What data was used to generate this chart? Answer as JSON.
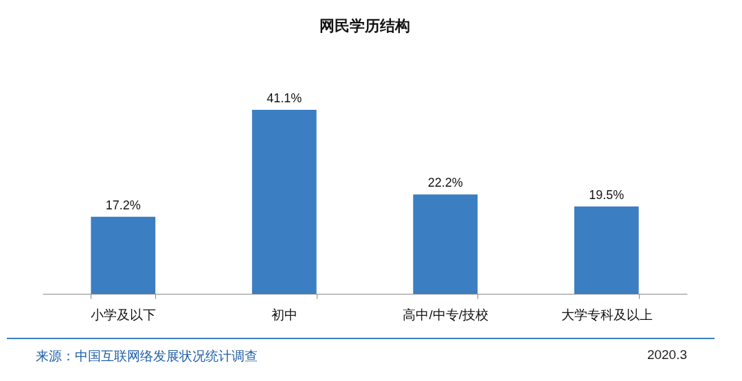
{
  "chart_data": {
    "type": "bar",
    "title": "网民学历结构",
    "categories": [
      "小学及以下",
      "初中",
      "高中/中专/技校",
      "大学专科及以上"
    ],
    "values": [
      17.2,
      41.1,
      22.2,
      19.5
    ],
    "value_labels": [
      "17.2%",
      "41.1%",
      "22.2%",
      "19.5%"
    ],
    "color": "#3b7ec2",
    "grid": false,
    "annotations": [
      "来源：中国互联网络发展状况统计调查",
      "2020.3"
    ]
  }
}
